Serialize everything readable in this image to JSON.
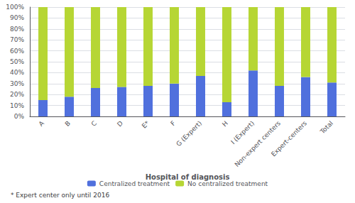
{
  "chart_data": {
    "type": "bar",
    "stacked": true,
    "categories": [
      "A",
      "B",
      "C",
      "D",
      "E*",
      "F",
      "G (Expert)",
      "H",
      "I (Expert)",
      "Non-expert centers",
      "Expert-centers",
      "Total"
    ],
    "series": [
      {
        "name": "Centralized treatment",
        "values": [
          15,
          18,
          26,
          27,
          28,
          30,
          37,
          13,
          42,
          28,
          36,
          31
        ]
      },
      {
        "name": "No centralized treatment",
        "values": [
          85,
          82,
          74,
          73,
          72,
          70,
          63,
          87,
          58,
          72,
          64,
          69
        ]
      }
    ],
    "xlabel": "Hospital of diagnosis",
    "ylim": [
      0,
      100
    ],
    "yticks": [
      {
        "value": 0,
        "label": "0%"
      },
      {
        "value": 10,
        "label": "10%"
      },
      {
        "value": 20,
        "label": "20%"
      },
      {
        "value": 30,
        "label": "30%"
      },
      {
        "value": 40,
        "label": "40%"
      },
      {
        "value": 50,
        "label": "50%"
      },
      {
        "value": 60,
        "label": "60%"
      },
      {
        "value": 70,
        "label": "70%"
      },
      {
        "value": 80,
        "label": "80%"
      },
      {
        "value": 90,
        "label": "90%"
      },
      {
        "value": 100,
        "label": "100%"
      }
    ],
    "grid": true,
    "legend": "bottom",
    "annotations": [
      "* Expert center only until 2016"
    ]
  }
}
